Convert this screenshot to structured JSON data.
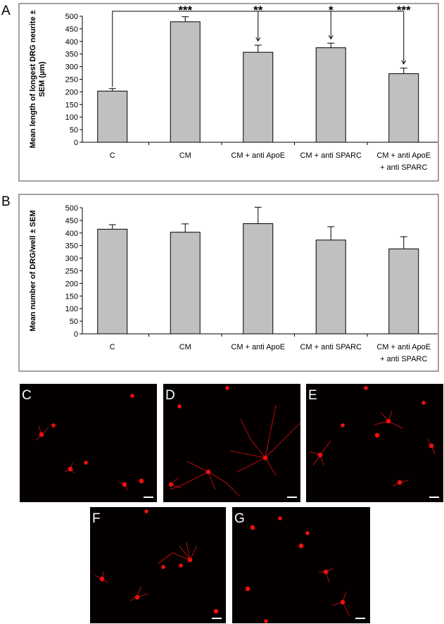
{
  "chart_data": [
    {
      "type": "bar",
      "panel_label": "A",
      "y_label": "Mean length of longest DRG neurite ± SEM (µm)",
      "categories": [
        "C",
        "CM",
        "CM + anti ApoE",
        "CM + anti SPARC",
        "CM + anti ApoE + anti SPARC"
      ],
      "values": [
        203,
        478,
        357,
        375,
        272
      ],
      "errors": [
        10,
        20,
        28,
        18,
        22
      ],
      "significance_labels": [
        null,
        "***",
        "**",
        "*",
        "***"
      ],
      "color": "#c0c0c0",
      "ylim": [
        0,
        500
      ],
      "yticks": [
        0,
        50,
        100,
        150,
        200,
        250,
        300,
        350,
        400,
        450,
        500
      ],
      "grid": false
    },
    {
      "type": "bar",
      "panel_label": "B",
      "y_label": "Mean number of DRG/well ± SEM",
      "categories": [
        "C",
        "CM",
        "CM + anti ApoE",
        "CM + anti SPARC",
        "CM + anti ApoE + anti SPARC"
      ],
      "values": [
        415,
        403,
        437,
        372,
        337
      ],
      "errors": [
        18,
        33,
        65,
        53,
        48
      ],
      "color": "#c0c0c0",
      "ylim": [
        0,
        500
      ],
      "yticks": [
        0,
        50,
        100,
        150,
        200,
        250,
        300,
        350,
        400,
        450,
        500
      ],
      "grid": false
    }
  ],
  "image_panels": [
    {
      "label": "C"
    },
    {
      "label": "D"
    },
    {
      "label": "E"
    },
    {
      "label": "F"
    },
    {
      "label": "G"
    }
  ]
}
